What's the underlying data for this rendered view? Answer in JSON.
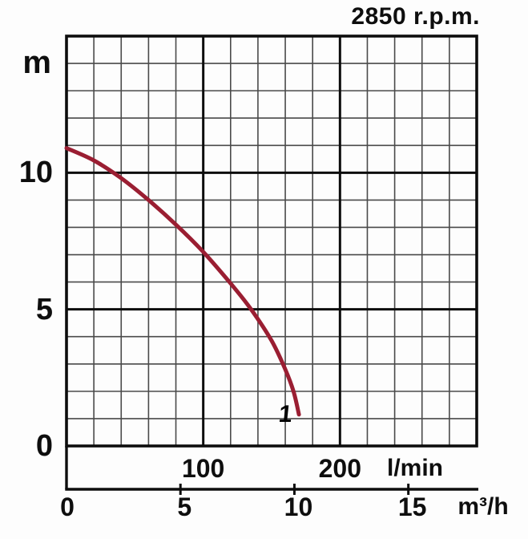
{
  "title": "2850 r.p.m.",
  "chart_data": {
    "type": "line",
    "title": "2850 r.p.m.",
    "y_axis": {
      "unit": "m",
      "range": [
        0,
        15
      ],
      "minor_step": 1,
      "major_lines": [
        5,
        10
      ],
      "unit_label_at": 14,
      "ticks": [
        {
          "value": 0,
          "label": "0"
        },
        {
          "value": 5,
          "label": "5"
        },
        {
          "value": 10,
          "label": "10"
        }
      ]
    },
    "x_axis_lmin": {
      "unit": "l/min",
      "range": [
        0,
        300
      ],
      "minor_step": 20,
      "major_lines": [
        100,
        200
      ],
      "ticks": [
        {
          "value": 100,
          "label": "100"
        },
        {
          "value": 200,
          "label": "200"
        }
      ]
    },
    "x_axis_m3h": {
      "unit": "m³/h",
      "lmin_per_unit": 16.6667,
      "ticks": [
        {
          "value": 0,
          "label": "0"
        },
        {
          "value": 5,
          "label": "5"
        },
        {
          "value": 10,
          "label": "10"
        },
        {
          "value": 15,
          "label": "15"
        }
      ]
    },
    "series": [
      {
        "name": "1",
        "label": "1",
        "label_at": [
          159,
          1.2
        ],
        "color": "#9a1e32",
        "points_lmin_m": [
          [
            0,
            10.9
          ],
          [
            20,
            10.45
          ],
          [
            40,
            9.8
          ],
          [
            60,
            9.0
          ],
          [
            80,
            8.1
          ],
          [
            100,
            7.1
          ],
          [
            120,
            5.95
          ],
          [
            135,
            5.0
          ],
          [
            150,
            3.85
          ],
          [
            160,
            2.8
          ],
          [
            166,
            2.0
          ],
          [
            170,
            1.15
          ]
        ]
      }
    ],
    "grid": true,
    "legend": false,
    "colors": {
      "curve": "#9a1e32",
      "grid_minor": "#4a4a4a",
      "grid_major": "#0d0d0d",
      "border": "#0d0d0d",
      "text": "#0e0e0e",
      "background": "#fdfdfd"
    }
  }
}
